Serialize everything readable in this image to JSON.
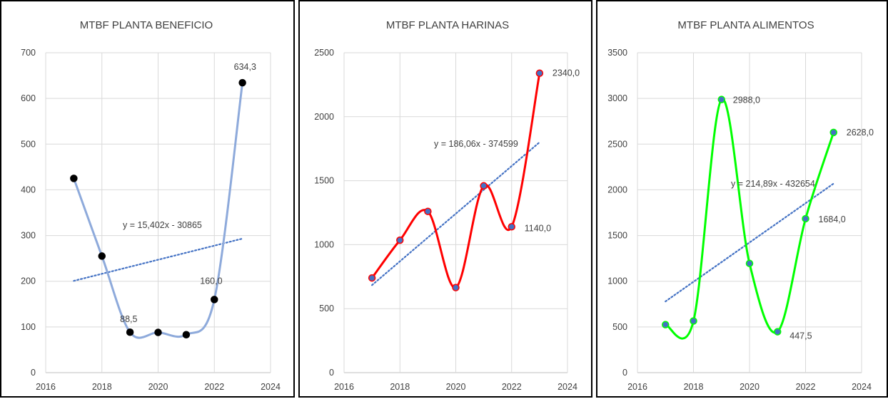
{
  "chart_data": [
    {
      "type": "scatter",
      "title": "MTBF PLANTA BENEFICIO",
      "x": [
        2017,
        2018,
        2019,
        2020,
        2021,
        2022,
        2023
      ],
      "y": [
        425,
        255,
        88.5,
        88,
        83,
        160,
        634.3
      ],
      "xlim": [
        2016,
        2024
      ],
      "ylim": [
        0,
        700
      ],
      "xticks": [
        "2016",
        "2018",
        "2020",
        "2022",
        "2024"
      ],
      "yticks": [
        "0",
        "100",
        "200",
        "300",
        "400",
        "500",
        "600",
        "700"
      ],
      "data_labels": [
        {
          "index": 2,
          "text": "88,5"
        },
        {
          "index": 5,
          "text": "160,0"
        },
        {
          "index": 6,
          "text": "634,3"
        }
      ],
      "trendline": {
        "equation": "y = 15,402x - 30865",
        "slope": 15.402,
        "intercept": -30865,
        "style": "dotted"
      },
      "line_color": "#8eaadb",
      "marker_fill": "#000000",
      "marker_stroke": "#000000",
      "grid": true
    },
    {
      "type": "scatter",
      "title": "MTBF PLANTA HARINAS",
      "x": [
        2017,
        2018,
        2019,
        2020,
        2021,
        2022,
        2023
      ],
      "y": [
        740,
        1035,
        1260,
        665,
        1460,
        1140,
        2340
      ],
      "xlim": [
        2016,
        2024
      ],
      "ylim": [
        0,
        2500
      ],
      "xticks": [
        "2016",
        "2018",
        "2020",
        "2022",
        "2024"
      ],
      "yticks": [
        "0",
        "500",
        "1000",
        "1500",
        "2000",
        "2500"
      ],
      "data_labels": [
        {
          "index": 5,
          "text": "1140,0"
        },
        {
          "index": 6,
          "text": "2340,0"
        }
      ],
      "trendline": {
        "equation": "y = 186,06x - 374599",
        "slope": 186.06,
        "intercept": -374599,
        "style": "dotted"
      },
      "line_color": "#ff0000",
      "marker_fill": "#4472c4",
      "marker_stroke": "#ff0000",
      "grid": true
    },
    {
      "type": "scatter",
      "title": "MTBF PLANTA ALIMENTOS",
      "x": [
        2017,
        2018,
        2019,
        2020,
        2021,
        2022,
        2023
      ],
      "y": [
        525,
        565,
        2988,
        1195,
        447.5,
        1684,
        2628
      ],
      "xlim": [
        2016,
        2024
      ],
      "ylim": [
        0,
        3500
      ],
      "xticks": [
        "2016",
        "2018",
        "2020",
        "2022",
        "2024"
      ],
      "yticks": [
        "0",
        "500",
        "1000",
        "1500",
        "2000",
        "2500",
        "3000",
        "3500"
      ],
      "data_labels": [
        {
          "index": 2,
          "text": "2988,0"
        },
        {
          "index": 4,
          "text": "447,5"
        },
        {
          "index": 5,
          "text": "1684,0"
        },
        {
          "index": 6,
          "text": "2628,0"
        }
      ],
      "trendline": {
        "equation": "y = 214,89x - 432654",
        "slope": 214.89,
        "intercept": -432654,
        "style": "dotted"
      },
      "line_color": "#00ff00",
      "marker_fill": "#4472c4",
      "marker_stroke": "#00ff00",
      "grid": true
    }
  ]
}
